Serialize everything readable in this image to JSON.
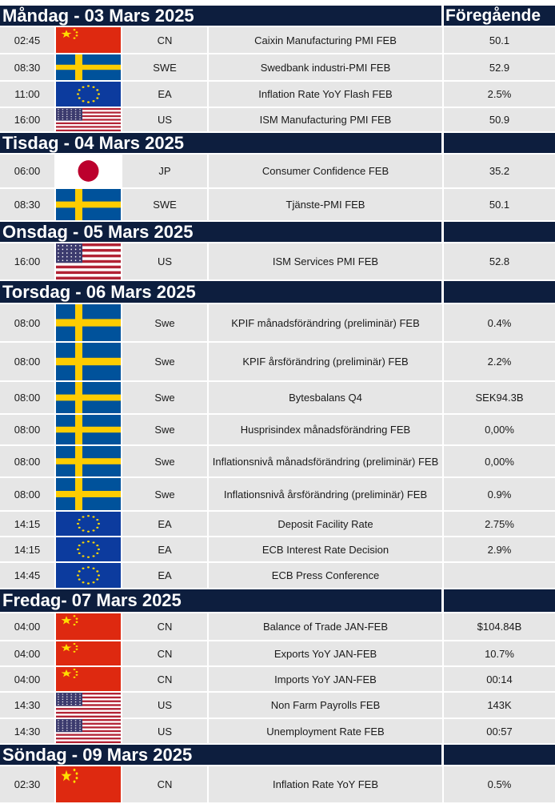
{
  "title_previous": "Föregående",
  "days": [
    {
      "day": "Måndag - 03 Mars 2025",
      "events": [
        {
          "time": "02:45",
          "flag": "cn-flag",
          "country": "CN",
          "event": "Caixin Manufacturing PMI FEB",
          "previous": "50.1"
        },
        {
          "time": "08:30",
          "flag": "se-flag",
          "country": "SWE",
          "event": "Swedbank industri-PMI FEB",
          "previous": "52.9"
        },
        {
          "time": "11:00",
          "flag": "eu-flag",
          "country": "EA",
          "event": "Inflation Rate YoY Flash FEB",
          "previous": "2.5%"
        },
        {
          "time": "16:00",
          "flag": "us-flag",
          "country": "US",
          "event": "ISM Manufacturing PMI FEB",
          "previous": "50.9"
        }
      ]
    },
    {
      "day": "Tisdag - 04 Mars 2025",
      "events": [
        {
          "time": "06:00",
          "flag": "jp-flag",
          "country": "JP",
          "event": "Consumer Confidence FEB",
          "previous": "35.2"
        },
        {
          "time": "08:30",
          "flag": "se-flag",
          "country": "SWE",
          "event": "Tjänste-PMI FEB",
          "previous": "50.1"
        }
      ]
    },
    {
      "day": "Onsdag - 05 Mars 2025",
      "events": [
        {
          "time": "16:00",
          "flag": "us-flag",
          "country": "US",
          "event": "ISM Services PMI FEB",
          "previous": "52.8"
        }
      ]
    },
    {
      "day": "Torsdag - 06 Mars 2025",
      "events": [
        {
          "time": "08:00",
          "flag": "se-flag",
          "country": "Swe",
          "event": "KPIF månadsförändring (preliminär) FEB",
          "previous": "0.4%"
        },
        {
          "time": "08:00",
          "flag": "se-flag",
          "country": "Swe",
          "event": "KPIF årsförändring (preliminär) FEB",
          "previous": "2.2%"
        },
        {
          "time": "08:00",
          "flag": "se-flag",
          "country": "Swe",
          "event": "Bytesbalans Q4",
          "previous": "SEK94.3B"
        },
        {
          "time": "08:00",
          "flag": "se-flag",
          "country": "Swe",
          "event": "Husprisindex månadsförändring FEB",
          "previous": "0,00%"
        },
        {
          "time": "08:00",
          "flag": "se-flag",
          "country": "Swe",
          "event": "Inflationsnivå månadsförändring (preliminär) FEB",
          "previous": "0,00%"
        },
        {
          "time": "08:00",
          "flag": "se-flag",
          "country": "Swe",
          "event": "Inflationsnivå årsförändring (preliminär) FEB",
          "previous": "0.9%"
        },
        {
          "time": "14:15",
          "flag": "eu-flag",
          "country": "EA",
          "event": "Deposit Facility Rate",
          "previous": "2.75%"
        },
        {
          "time": "14:15",
          "flag": "eu-flag",
          "country": "EA",
          "event": "ECB Interest Rate Decision",
          "previous": "2.9%"
        },
        {
          "time": "14:45",
          "flag": "eu-flag",
          "country": "EA",
          "event": "ECB Press Conference",
          "previous": ""
        }
      ]
    },
    {
      "day": "Fredag- 07 Mars 2025",
      "events": [
        {
          "time": "04:00",
          "flag": "cn-flag",
          "country": "CN",
          "event": "Balance of Trade JAN-FEB",
          "previous": "$104.84B"
        },
        {
          "time": "04:00",
          "flag": "cn-flag",
          "country": "CN",
          "event": "Exports YoY JAN-FEB",
          "previous": "10.7%"
        },
        {
          "time": "04:00",
          "flag": "cn-flag",
          "country": "CN",
          "event": "Imports YoY JAN-FEB",
          "previous": "00:14"
        },
        {
          "time": "14:30",
          "flag": "us-flag",
          "country": "US",
          "event": "Non Farm Payrolls FEB",
          "previous": "143K"
        },
        {
          "time": "14:30",
          "flag": "us-flag",
          "country": "US",
          "event": "Unemployment Rate FEB",
          "previous": "00:57"
        }
      ]
    },
    {
      "day": "Söndag - 09 Mars 2025",
      "events": [
        {
          "time": "02:30",
          "flag": "cn-flag",
          "country": "CN",
          "event": "Inflation Rate YoY FEB",
          "previous": "0.5%"
        }
      ]
    }
  ],
  "colors": {
    "header_bg": "#0d1e3e",
    "row_bg": "#e6e6e6",
    "header_text": "#ffffff"
  }
}
